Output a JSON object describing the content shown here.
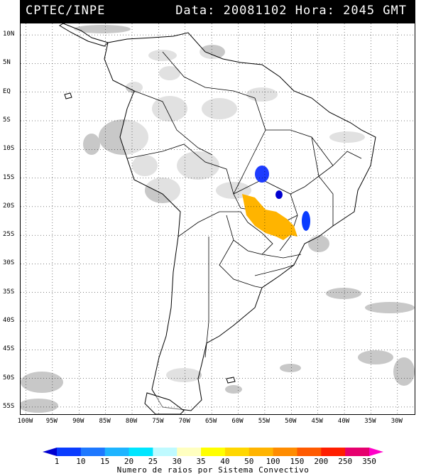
{
  "header": {
    "source": "CPTEC/INPE",
    "datetime": "Data: 20081102 Hora: 2045 GMT"
  },
  "map": {
    "lat_labels": [
      "10N",
      "5N",
      "EQ",
      "5S",
      "10S",
      "15S",
      "20S",
      "25S",
      "30S",
      "35S",
      "40S",
      "45S",
      "50S",
      "55S"
    ],
    "lat_values": [
      10,
      5,
      0,
      -5,
      -10,
      -15,
      -20,
      -25,
      -30,
      -35,
      -40,
      -45,
      -50,
      -55
    ],
    "lon_labels": [
      "100W",
      "95W",
      "90W",
      "85W",
      "80W",
      "75W",
      "70W",
      "65W",
      "60W",
      "55W",
      "50W",
      "45W",
      "40W",
      "35W",
      "30W"
    ],
    "lon_values": [
      -100,
      -95,
      -90,
      -85,
      -80,
      -75,
      -70,
      -65,
      -60,
      -55,
      -50,
      -45,
      -40,
      -35,
      -30
    ],
    "lat_range": [
      -56.5,
      12
    ],
    "lon_range": [
      -101,
      -26.5
    ],
    "grid": true,
    "cloud_color": "#c8c8c8",
    "land_color": "#ffffff",
    "coast_color": "#000000"
  },
  "legend": {
    "title": "Numero de raios por Sistema Convectivo",
    "labels": [
      "1",
      "10",
      "15",
      "20",
      "25",
      "30",
      "35",
      "40",
      "50",
      "100",
      "150",
      "200",
      "250",
      "350"
    ],
    "colors": [
      "#0000d0",
      "#0a3cff",
      "#1e78ff",
      "#1eb4ff",
      "#00e6ff",
      "#bffaff",
      "#ffffc0",
      "#ffff00",
      "#ffd700",
      "#ffb400",
      "#ff8c00",
      "#ff5a00",
      "#ff1e00",
      "#e6006e",
      "#ff00c8"
    ]
  }
}
